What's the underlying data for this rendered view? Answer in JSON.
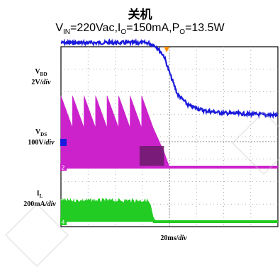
{
  "title": "关机",
  "conditions": {
    "v": "V",
    "v_sub": "IN",
    "v_val": "=220Vac,",
    "i": "I",
    "i_sub": "O",
    "i_val": "=150mA,",
    "p": "P",
    "p_sub": "O",
    "p_val": "=13.5W"
  },
  "labels": {
    "vdd_main": "V",
    "vdd_sub": "DD",
    "vdd_scale": "2V/",
    "vdd_div": "div",
    "vds_main": "V",
    "vds_sub": "DS",
    "vds_scale": "100V/",
    "vds_div": "div",
    "il_main": "I",
    "il_sub": "L",
    "il_scale": "200mA/",
    "il_div": "div",
    "time_scale": "20ms/",
    "time_div": "div"
  },
  "markers": {
    "trigger": "T",
    "ch2": "2",
    "ch4": "4"
  },
  "colors": {
    "vdd": "#1a1adc",
    "vds": "#cc22cc",
    "vds_dark": "#6a1a6a",
    "il": "#22cc22",
    "trigger": "#ff8c00",
    "grid": "#9a9a9a",
    "frame": "#000000"
  },
  "chart_data": {
    "type": "line",
    "x_unit": "ms",
    "x_div": 20,
    "series": [
      {
        "name": "V_DD",
        "unit": "V",
        "per_div": 2,
        "points": [
          [
            0,
            7.2
          ],
          [
            64,
            7.2
          ],
          [
            70,
            6.9
          ],
          [
            76,
            6.0
          ],
          [
            80,
            4.5
          ],
          [
            86,
            2.5
          ],
          [
            94,
            1.5
          ],
          [
            106,
            1.0
          ],
          [
            120,
            0.8
          ],
          [
            140,
            0.7
          ],
          [
            160,
            0.6
          ]
        ]
      },
      {
        "name": "V_DS",
        "unit": "V",
        "per_div": 100,
        "pulses": {
          "start_ms": 0,
          "end_ms": 68,
          "period_ms": 8.5,
          "peak_v": 280,
          "decay_to_v": 0,
          "decay_end_ms": 76
        },
        "baseline_v": 0
      },
      {
        "name": "I_L",
        "unit": "mA",
        "per_div": 200,
        "points": [
          [
            0,
            220
          ],
          [
            64,
            220
          ],
          [
            66,
            180
          ],
          [
            68,
            50
          ],
          [
            70,
            0
          ],
          [
            160,
            0
          ]
        ]
      }
    ]
  }
}
